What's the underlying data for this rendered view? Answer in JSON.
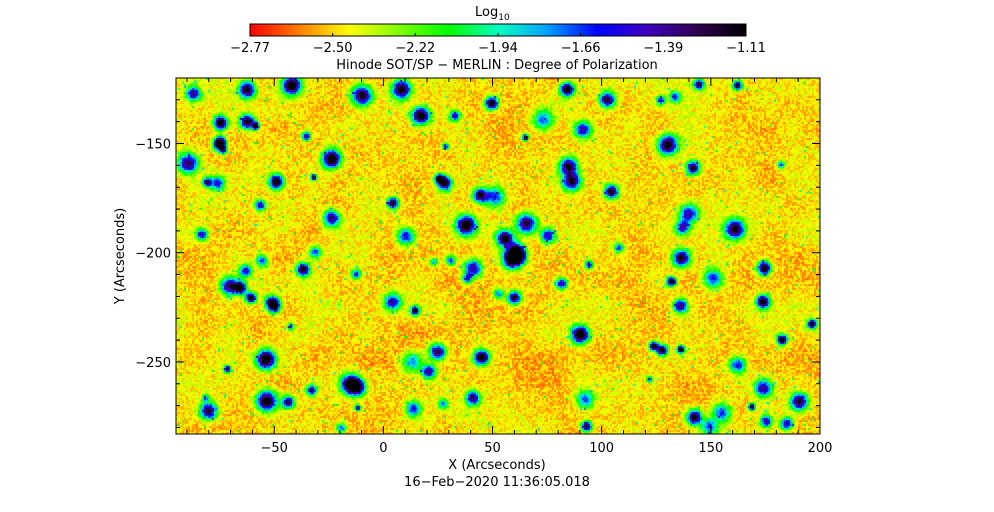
{
  "chart_data": {
    "type": "heatmap",
    "title": "Hinode SOT/SP − MERLIN : Degree of Polarization",
    "colorbar": {
      "label_main": "Log",
      "label_sub": "10",
      "ticks": [
        "−2.77",
        "−2.50",
        "−2.22",
        "−1.94",
        "−1.66",
        "−1.39",
        "−1.11"
      ],
      "range": [
        -2.77,
        -1.11
      ],
      "colors": [
        "#ff0000",
        "#ff8000",
        "#ffff00",
        "#80ff00",
        "#00ff00",
        "#00ffc0",
        "#00a0ff",
        "#0000ff",
        "#4000c0",
        "#300050",
        "#000000"
      ]
    },
    "x": {
      "label": "X (Arcseconds)",
      "range": [
        -95,
        200
      ],
      "ticks": [
        -50,
        0,
        50,
        100,
        150,
        200
      ],
      "tick_labels": [
        "−50",
        "0",
        "50",
        "100",
        "150",
        "200"
      ]
    },
    "y": {
      "label": "Y (Arcseconds)",
      "range": [
        -283,
        -120
      ],
      "ticks": [
        -150,
        -200,
        -250
      ],
      "tick_labels": [
        "−150",
        "−200",
        "−250"
      ]
    },
    "dominant_range": [
      -2.77,
      -2.3
    ],
    "timestamp": "16−Feb−2020 11:36:05.018"
  }
}
